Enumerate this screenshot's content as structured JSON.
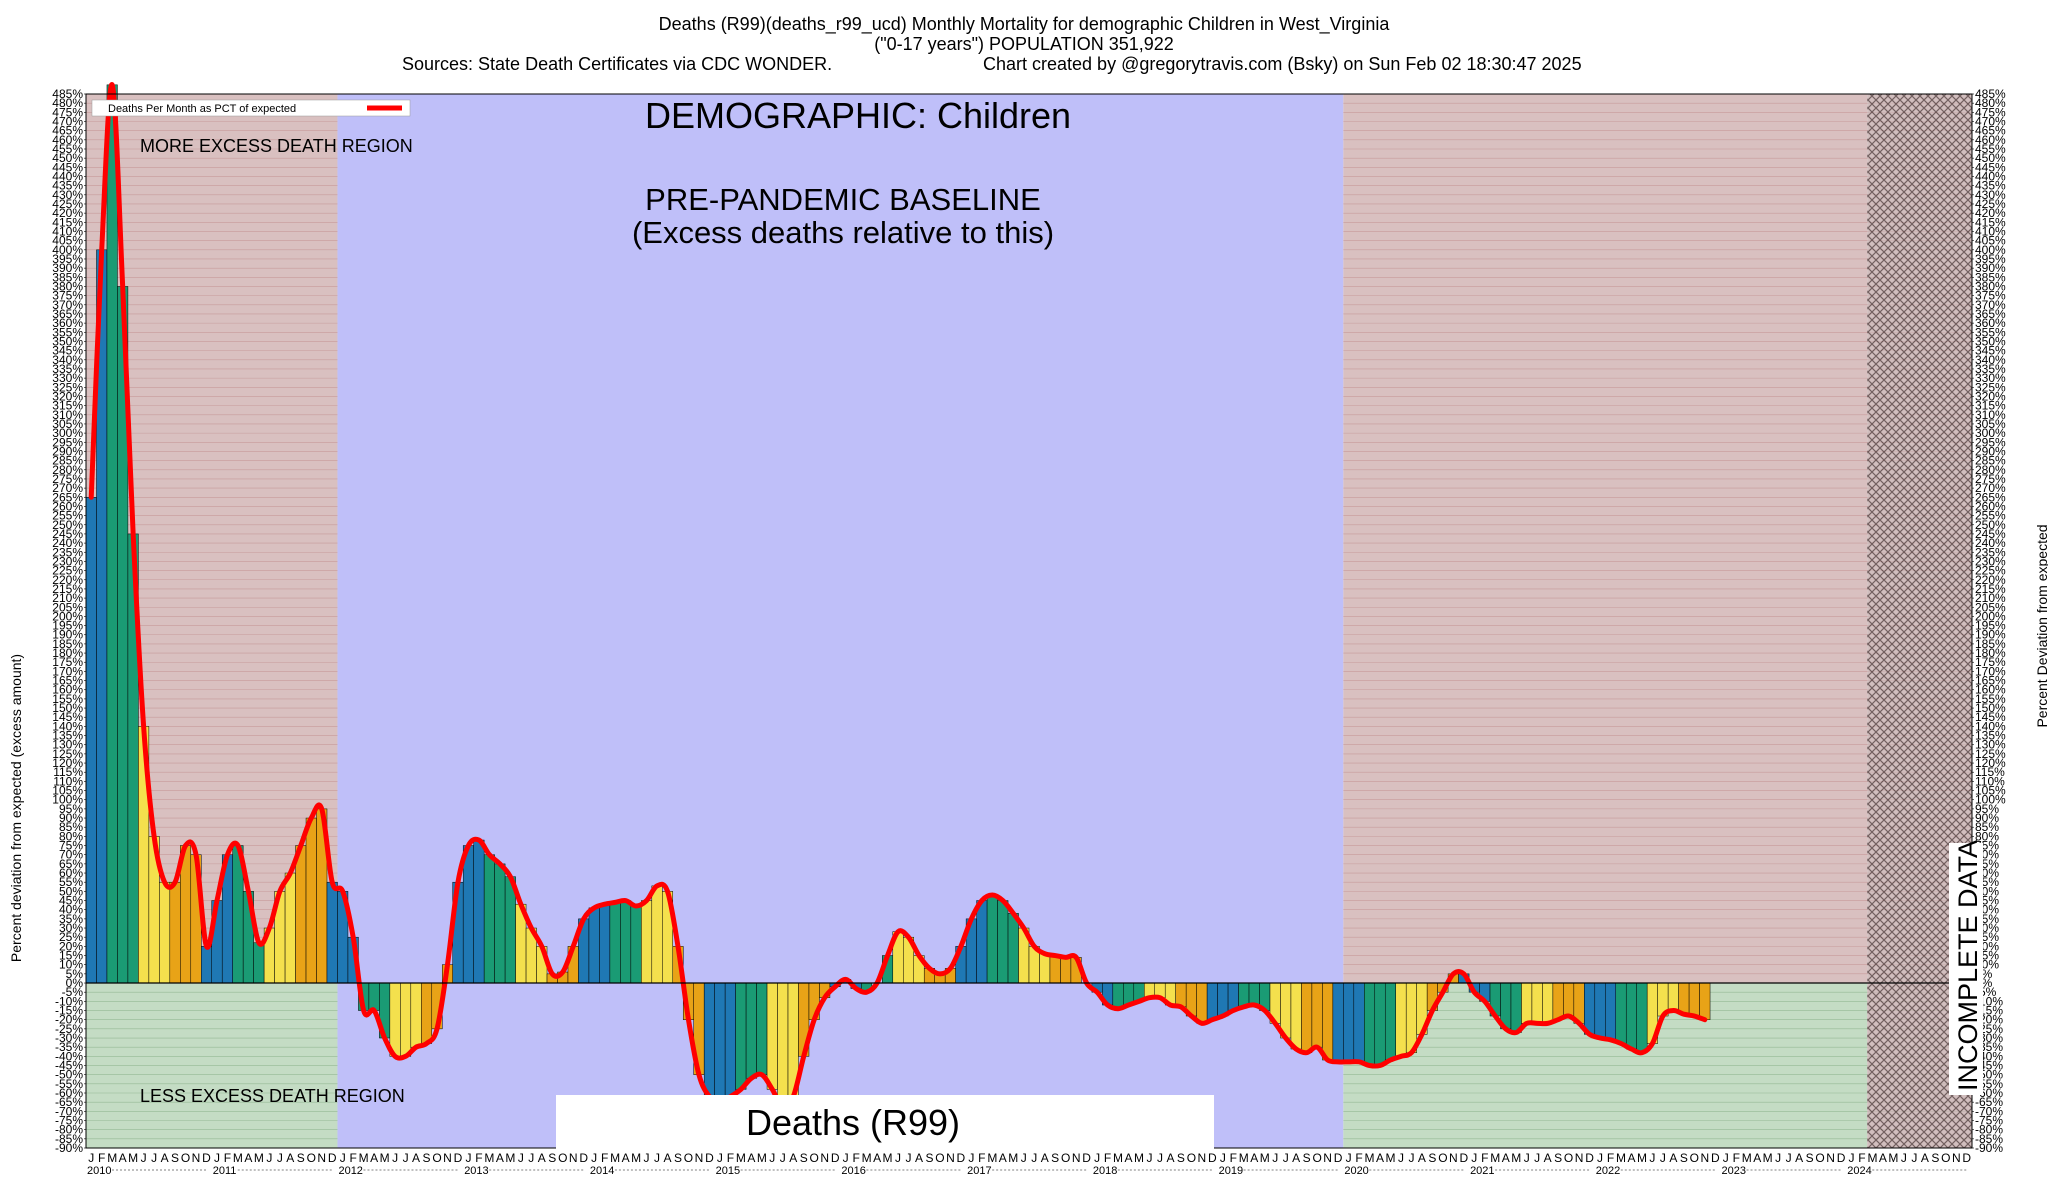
{
  "header": {
    "line1": "Deaths (R99)(deaths_r99_ucd) Monthly Mortality for demographic Children in West_Virginia",
    "line2": "(\"0-17 years\") POPULATION 351,922",
    "line3_left": "Sources: State Death Certificates via CDC WONDER.",
    "line3_right": "Chart created by @gregorytravis.com (Bsky) on Sun Feb 02 18:30:47 2025"
  },
  "annotations": {
    "demographic": "DEMOGRAPHIC: Children",
    "baseline_line1": "PRE-PANDEMIC BASELINE",
    "baseline_line2": "(Excess deaths relative to this)",
    "more_excess": "MORE EXCESS DEATH REGION",
    "less_excess": "LESS EXCESS DEATH REGION",
    "incomplete": "INCOMPLETE DATA",
    "cause_box": "Deaths (R99)"
  },
  "colors": {
    "more_excess_region": "#d9c0c0",
    "less_excess_region": "#c4dcc4",
    "baseline_region": "#bfbff9",
    "incomplete_hatch": "#8a6e6e",
    "line": "#ff0000",
    "bar_blue": "#1f78b4",
    "bar_green": "#1a9b74",
    "bar_yellow": "#f4e04d",
    "bar_orange": "#e8a317"
  },
  "chart_data": {
    "type": "bar",
    "ylabel_left": "Percent deviation from expected (excess amount)",
    "ylabel_right": "Percent Deviation from expected",
    "ylim": [
      -90,
      485
    ],
    "ytick_step": 5,
    "legend": {
      "label": "Deaths Per Month as PCT of expected",
      "position": "top-left"
    },
    "month_letters": [
      "J",
      "F",
      "M",
      "A",
      "M",
      "J",
      "J",
      "A",
      "S",
      "O",
      "N",
      "D"
    ],
    "years": [
      "2010",
      "2011",
      "2012",
      "2013",
      "2014",
      "2015",
      "2016",
      "2017",
      "2018",
      "2019",
      "2020",
      "2021",
      "2022",
      "2023",
      "2024"
    ],
    "regions": [
      {
        "label": "MORE EXCESS DEATH REGION / LESS EXCESS DEATH REGION",
        "from": "2010-01",
        "to": "2011-12"
      },
      {
        "label": "PRE-PANDEMIC BASELINE",
        "from": "2012-01",
        "to": "2019-12"
      },
      {
        "label": "MORE EXCESS DEATH REGION / LESS EXCESS DEATH REGION",
        "from": "2020-01",
        "to": "2024-02"
      },
      {
        "label": "INCOMPLETE DATA",
        "from": "2024-03",
        "to": "2024-12"
      }
    ],
    "series": [
      {
        "name": "Deaths Per Month as PCT of expected",
        "start": "2010-01",
        "values": [
          265,
          400,
          490,
          380,
          245,
          140,
          80,
          55,
          55,
          75,
          70,
          20,
          45,
          70,
          75,
          50,
          22,
          30,
          50,
          60,
          75,
          90,
          95,
          55,
          50,
          25,
          -15,
          -15,
          -30,
          -40,
          -40,
          -35,
          -33,
          -25,
          10,
          55,
          75,
          78,
          70,
          65,
          58,
          43,
          30,
          20,
          5,
          6,
          20,
          35,
          41,
          43,
          44,
          45,
          42,
          45,
          53,
          50,
          20,
          -20,
          -50,
          -62,
          -65,
          -62,
          -58,
          -52,
          -50,
          -58,
          -68,
          -62,
          -40,
          -20,
          -8,
          -2,
          2,
          -3,
          -5,
          0,
          15,
          28,
          25,
          15,
          8,
          5,
          8,
          20,
          35,
          45,
          48,
          45,
          38,
          30,
          20,
          16,
          15,
          14,
          14,
          0,
          -5,
          -12,
          -14,
          -12,
          -10,
          -8,
          -8,
          -12,
          -13,
          -18,
          -22,
          -20,
          -18,
          -15,
          -13,
          -12,
          -15,
          -22,
          -30,
          -36,
          -38,
          -35,
          -42,
          -43,
          -43,
          -43,
          -45,
          -45,
          -42,
          -40,
          -38,
          -28,
          -15,
          -5,
          5,
          5,
          -5,
          -10,
          -18,
          -25,
          -27,
          -22,
          -22,
          -22,
          -20,
          -18,
          -22,
          -28,
          -30,
          -31,
          -33,
          -36,
          -38,
          -33,
          -18,
          -15,
          -17,
          -18,
          -20
        ]
      }
    ]
  }
}
